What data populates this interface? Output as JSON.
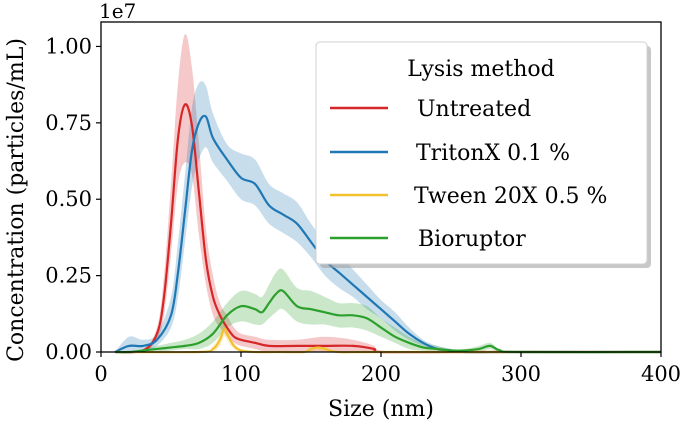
{
  "chart_data": {
    "type": "line",
    "title": "",
    "xlabel": "Size (nm)",
    "ylabel": "Concentration (particles/mL)",
    "y_multiplier_label": "1e7",
    "xlim": [
      0,
      400
    ],
    "ylim": [
      0,
      1.08
    ],
    "xticks": [
      0,
      100,
      200,
      300,
      400
    ],
    "xtick_labels": [
      "0",
      "100",
      "200",
      "300",
      "400"
    ],
    "yticks": [
      0,
      0.25,
      0.5,
      0.75,
      1.0
    ],
    "ytick_labels": [
      "0.00",
      "0.25",
      "0.50",
      "0.75",
      "1.00"
    ],
    "grid": false,
    "legend": {
      "title": "Lysis method",
      "placement": "top-right",
      "entries": [
        "Untreated",
        "TritonX 0.1 %",
        "Tween 20X 0.5 %",
        "Bioruptor"
      ]
    },
    "series": [
      {
        "name": "Untreated",
        "color": "#d62728",
        "x": [
          10,
          30,
          40,
          45,
          50,
          55,
          60,
          65,
          70,
          75,
          80,
          85,
          90,
          95,
          100,
          110,
          120,
          140,
          160,
          180,
          195,
          200,
          250,
          300,
          400
        ],
        "y": [
          0,
          0.005,
          0.06,
          0.18,
          0.42,
          0.7,
          0.81,
          0.74,
          0.52,
          0.3,
          0.18,
          0.12,
          0.08,
          0.05,
          0.04,
          0.03,
          0.02,
          0.02,
          0.02,
          0.02,
          0.01,
          0.0,
          0.0,
          0.0,
          0.0
        ],
        "upper": [
          0,
          0.01,
          0.08,
          0.25,
          0.55,
          0.88,
          1.04,
          0.93,
          0.68,
          0.4,
          0.25,
          0.16,
          0.12,
          0.08,
          0.06,
          0.05,
          0.04,
          0.04,
          0.05,
          0.04,
          0.02,
          0.0,
          0.0,
          0.0,
          0.0
        ],
        "lower": [
          0,
          0.0,
          0.04,
          0.12,
          0.32,
          0.55,
          0.62,
          0.58,
          0.38,
          0.22,
          0.12,
          0.08,
          0.05,
          0.03,
          0.02,
          0.01,
          0.0,
          0.0,
          0.0,
          0.0,
          0.0,
          0.0,
          0.0,
          0.0,
          0.0
        ]
      },
      {
        "name": "TritonX 0.1 %",
        "color": "#1f77b4",
        "x": [
          10,
          20,
          30,
          40,
          50,
          55,
          60,
          65,
          70,
          75,
          80,
          90,
          100,
          110,
          120,
          130,
          140,
          150,
          160,
          170,
          180,
          190,
          200,
          210,
          220,
          230,
          240,
          250,
          260,
          300,
          400
        ],
        "y": [
          0,
          0.02,
          0.02,
          0.04,
          0.12,
          0.26,
          0.46,
          0.66,
          0.75,
          0.77,
          0.7,
          0.63,
          0.57,
          0.55,
          0.48,
          0.45,
          0.42,
          0.36,
          0.3,
          0.26,
          0.22,
          0.18,
          0.14,
          0.1,
          0.06,
          0.03,
          0.01,
          0.005,
          0.0,
          0.0,
          0.0
        ],
        "upper": [
          0,
          0.05,
          0.04,
          0.06,
          0.18,
          0.36,
          0.58,
          0.8,
          0.88,
          0.87,
          0.78,
          0.68,
          0.65,
          0.63,
          0.55,
          0.52,
          0.49,
          0.42,
          0.36,
          0.32,
          0.27,
          0.22,
          0.17,
          0.13,
          0.08,
          0.04,
          0.02,
          0.01,
          0.0,
          0.0,
          0.0
        ],
        "lower": [
          0,
          0.0,
          0.005,
          0.02,
          0.08,
          0.18,
          0.36,
          0.54,
          0.63,
          0.67,
          0.62,
          0.56,
          0.5,
          0.48,
          0.42,
          0.39,
          0.36,
          0.31,
          0.25,
          0.21,
          0.18,
          0.14,
          0.11,
          0.07,
          0.04,
          0.02,
          0.005,
          0.0,
          0.0,
          0.0,
          0.0
        ]
      },
      {
        "name": "Tween 20X 0.5 %",
        "color": "#f2c12e",
        "x": [
          10,
          70,
          80,
          85,
          88,
          91,
          95,
          100,
          110,
          130,
          145,
          150,
          155,
          160,
          170,
          200,
          400
        ],
        "y": [
          0,
          0,
          0.01,
          0.04,
          0.075,
          0.05,
          0.02,
          0.005,
          0,
          0,
          0,
          0.01,
          0.015,
          0.01,
          0,
          0,
          0
        ],
        "upper": [
          0,
          0,
          0.02,
          0.06,
          0.1,
          0.07,
          0.03,
          0.01,
          0,
          0,
          0,
          0.02,
          0.025,
          0.02,
          0,
          0,
          0
        ],
        "lower": [
          0,
          0,
          0.0,
          0.02,
          0.05,
          0.03,
          0.01,
          0.0,
          0,
          0,
          0,
          0.0,
          0.005,
          0.0,
          0,
          0,
          0
        ]
      },
      {
        "name": "Bioruptor",
        "color": "#2ca02c",
        "x": [
          10,
          20,
          30,
          40,
          50,
          60,
          70,
          80,
          90,
          100,
          110,
          115,
          120,
          125,
          130,
          140,
          150,
          160,
          170,
          180,
          190,
          200,
          210,
          220,
          230,
          240,
          250,
          260,
          270,
          278,
          285,
          300,
          400
        ],
        "y": [
          0,
          0,
          0.005,
          0.01,
          0.015,
          0.02,
          0.03,
          0.06,
          0.12,
          0.15,
          0.14,
          0.13,
          0.16,
          0.19,
          0.2,
          0.15,
          0.14,
          0.13,
          0.12,
          0.12,
          0.11,
          0.08,
          0.05,
          0.03,
          0.015,
          0.01,
          0.005,
          0.005,
          0.01,
          0.02,
          0.005,
          0,
          0
        ],
        "upper": [
          0,
          0,
          0.01,
          0.02,
          0.03,
          0.04,
          0.06,
          0.1,
          0.16,
          0.2,
          0.19,
          0.18,
          0.22,
          0.26,
          0.27,
          0.21,
          0.2,
          0.18,
          0.16,
          0.16,
          0.15,
          0.11,
          0.08,
          0.05,
          0.03,
          0.02,
          0.01,
          0.01,
          0.02,
          0.03,
          0.01,
          0,
          0
        ],
        "lower": [
          0,
          0,
          0.0,
          0.0,
          0.005,
          0.01,
          0.01,
          0.03,
          0.08,
          0.1,
          0.09,
          0.09,
          0.11,
          0.13,
          0.14,
          0.1,
          0.09,
          0.09,
          0.08,
          0.08,
          0.07,
          0.05,
          0.03,
          0.01,
          0.005,
          0.0,
          0.0,
          0.0,
          0.0,
          0.01,
          0.0,
          0,
          0
        ]
      }
    ]
  }
}
